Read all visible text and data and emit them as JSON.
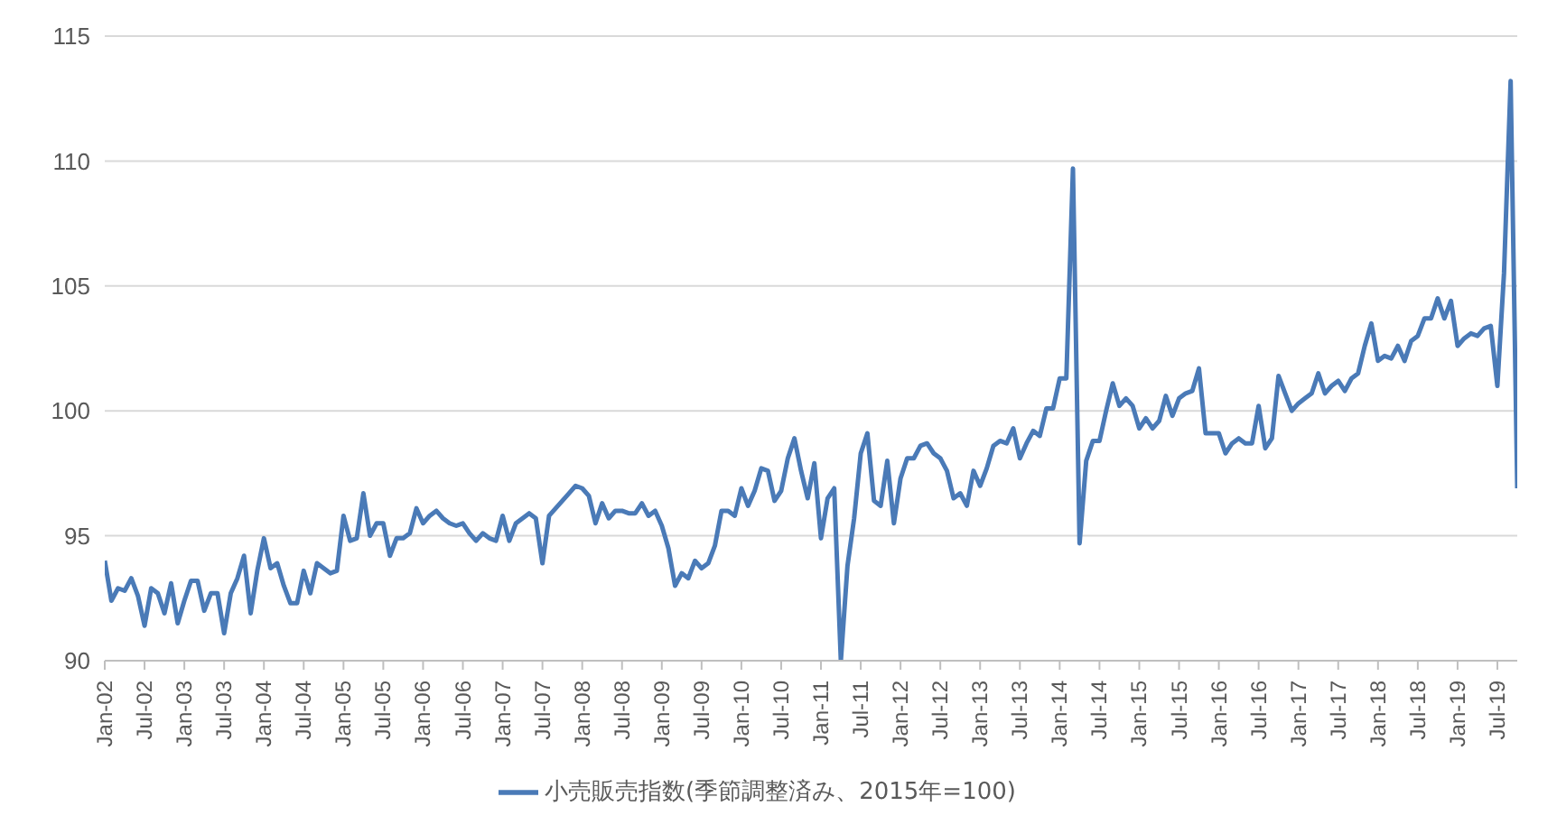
{
  "chart_data": {
    "type": "line",
    "xlim": [
      "2002-01",
      "2019-10"
    ],
    "ylim": [
      90,
      115
    ],
    "yticks": [
      90,
      95,
      100,
      105,
      110,
      115
    ],
    "grid": "y",
    "legend": "bottom",
    "xticks": [
      {
        "value": "2002-01",
        "label": "Jan-02"
      },
      {
        "value": "2002-07",
        "label": "Jul-02"
      },
      {
        "value": "2003-01",
        "label": "Jan-03"
      },
      {
        "value": "2003-07",
        "label": "Jul-03"
      },
      {
        "value": "2004-01",
        "label": "Jan-04"
      },
      {
        "value": "2004-07",
        "label": "Jul-04"
      },
      {
        "value": "2005-01",
        "label": "Jan-05"
      },
      {
        "value": "2005-07",
        "label": "Jul-05"
      },
      {
        "value": "2006-01",
        "label": "Jan-06"
      },
      {
        "value": "2006-07",
        "label": "Jul-06"
      },
      {
        "value": "2007-01",
        "label": "Jan-07"
      },
      {
        "value": "2007-07",
        "label": "Jul-07"
      },
      {
        "value": "2008-01",
        "label": "Jan-08"
      },
      {
        "value": "2008-07",
        "label": "Jul-08"
      },
      {
        "value": "2009-01",
        "label": "Jan-09"
      },
      {
        "value": "2009-07",
        "label": "Jul-09"
      },
      {
        "value": "2010-01",
        "label": "Jan-10"
      },
      {
        "value": "2010-07",
        "label": "Jul-10"
      },
      {
        "value": "2011-01",
        "label": "Jan-11"
      },
      {
        "value": "2011-07",
        "label": "Jul-11"
      },
      {
        "value": "2012-01",
        "label": "Jan-12"
      },
      {
        "value": "2012-07",
        "label": "Jul-12"
      },
      {
        "value": "2013-01",
        "label": "Jan-13"
      },
      {
        "value": "2013-07",
        "label": "Jul-13"
      },
      {
        "value": "2014-01",
        "label": "Jan-14"
      },
      {
        "value": "2014-07",
        "label": "Jul-14"
      },
      {
        "value": "2015-01",
        "label": "Jan-15"
      },
      {
        "value": "2015-07",
        "label": "Jul-15"
      },
      {
        "value": "2016-01",
        "label": "Jan-16"
      },
      {
        "value": "2016-07",
        "label": "Jul-16"
      },
      {
        "value": "2017-01",
        "label": "Jan-17"
      },
      {
        "value": "2017-07",
        "label": "Jul-17"
      },
      {
        "value": "2018-01",
        "label": "Jan-18"
      },
      {
        "value": "2018-07",
        "label": "Jul-18"
      },
      {
        "value": "2019-01",
        "label": "Jan-19"
      },
      {
        "value": "2019-07",
        "label": "Jul-19"
      }
    ],
    "x": [
      "2002-01",
      "2002-02",
      "2002-03",
      "2002-04",
      "2002-05",
      "2002-06",
      "2002-07",
      "2002-08",
      "2002-09",
      "2002-10",
      "2002-11",
      "2002-12",
      "2003-01",
      "2003-02",
      "2003-03",
      "2003-04",
      "2003-05",
      "2003-06",
      "2003-07",
      "2003-08",
      "2003-09",
      "2003-10",
      "2003-11",
      "2003-12",
      "2004-01",
      "2004-02",
      "2004-03",
      "2004-04",
      "2004-05",
      "2004-06",
      "2004-07",
      "2004-08",
      "2004-09",
      "2004-10",
      "2004-11",
      "2004-12",
      "2005-01",
      "2005-02",
      "2005-03",
      "2005-04",
      "2005-05",
      "2005-06",
      "2005-07",
      "2005-08",
      "2005-09",
      "2005-10",
      "2005-11",
      "2005-12",
      "2006-01",
      "2006-02",
      "2006-03",
      "2006-04",
      "2006-05",
      "2006-06",
      "2006-07",
      "2006-08",
      "2006-09",
      "2006-10",
      "2006-11",
      "2006-12",
      "2007-01",
      "2007-02",
      "2007-03",
      "2007-04",
      "2007-05",
      "2007-06",
      "2007-07",
      "2007-08",
      "2007-09",
      "2007-10",
      "2007-11",
      "2007-12",
      "2008-01",
      "2008-02",
      "2008-03",
      "2008-04",
      "2008-05",
      "2008-06",
      "2008-07",
      "2008-08",
      "2008-09",
      "2008-10",
      "2008-11",
      "2008-12",
      "2009-01",
      "2009-02",
      "2009-03",
      "2009-04",
      "2009-05",
      "2009-06",
      "2009-07",
      "2009-08",
      "2009-09",
      "2009-10",
      "2009-11",
      "2009-12",
      "2010-01",
      "2010-02",
      "2010-03",
      "2010-04",
      "2010-05",
      "2010-06",
      "2010-07",
      "2010-08",
      "2010-09",
      "2010-10",
      "2010-11",
      "2010-12",
      "2011-01",
      "2011-02",
      "2011-03",
      "2011-04",
      "2011-05",
      "2011-06",
      "2011-07",
      "2011-08",
      "2011-09",
      "2011-10",
      "2011-11",
      "2011-12",
      "2012-01",
      "2012-02",
      "2012-03",
      "2012-04",
      "2012-05",
      "2012-06",
      "2012-07",
      "2012-08",
      "2012-09",
      "2012-10",
      "2012-11",
      "2012-12",
      "2013-01",
      "2013-02",
      "2013-03",
      "2013-04",
      "2013-05",
      "2013-06",
      "2013-07",
      "2013-08",
      "2013-09",
      "2013-10",
      "2013-11",
      "2013-12",
      "2014-01",
      "2014-02",
      "2014-03",
      "2014-04",
      "2014-05",
      "2014-06",
      "2014-07",
      "2014-08",
      "2014-09",
      "2014-10",
      "2014-11",
      "2014-12",
      "2015-01",
      "2015-02",
      "2015-03",
      "2015-04",
      "2015-05",
      "2015-06",
      "2015-07",
      "2015-08",
      "2015-09",
      "2015-10",
      "2015-11",
      "2015-12",
      "2016-01",
      "2016-02",
      "2016-03",
      "2016-04",
      "2016-05",
      "2016-06",
      "2016-07",
      "2016-08",
      "2016-09",
      "2016-10",
      "2016-11",
      "2016-12",
      "2017-01",
      "2017-02",
      "2017-03",
      "2017-04",
      "2017-05",
      "2017-06",
      "2017-07",
      "2017-08",
      "2017-09",
      "2017-10",
      "2017-11",
      "2017-12",
      "2018-01",
      "2018-02",
      "2018-03",
      "2018-04",
      "2018-05",
      "2018-06",
      "2018-07",
      "2018-08",
      "2018-09",
      "2018-10",
      "2018-11",
      "2018-12",
      "2019-01",
      "2019-02",
      "2019-03",
      "2019-04",
      "2019-05",
      "2019-06",
      "2019-07",
      "2019-08",
      "2019-09",
      "2019-10"
    ],
    "series": [
      {
        "name": "小売販売指数(季節調整済み、2015年=100)",
        "color": "#4a7ab7",
        "values": [
          94.0,
          92.4,
          92.9,
          92.8,
          93.3,
          92.6,
          91.4,
          92.9,
          92.7,
          91.9,
          93.1,
          91.5,
          92.4,
          93.2,
          93.2,
          92.0,
          92.7,
          92.7,
          91.1,
          92.7,
          93.3,
          94.2,
          91.9,
          93.6,
          94.9,
          93.7,
          93.9,
          93.0,
          92.3,
          92.3,
          93.6,
          92.7,
          93.9,
          93.7,
          93.5,
          93.6,
          95.8,
          94.8,
          94.9,
          96.7,
          95.0,
          95.5,
          95.5,
          94.2,
          94.9,
          94.9,
          95.1,
          96.1,
          95.5,
          95.8,
          96.0,
          95.7,
          95.5,
          95.4,
          95.5,
          95.1,
          94.8,
          95.1,
          94.9,
          94.8,
          95.8,
          94.8,
          95.5,
          95.7,
          95.9,
          95.7,
          93.9,
          95.8,
          96.1,
          96.4,
          96.7,
          97.0,
          96.9,
          96.6,
          95.5,
          96.3,
          95.7,
          96.0,
          96.0,
          95.9,
          95.9,
          96.3,
          95.8,
          96.0,
          95.4,
          94.5,
          93.0,
          93.5,
          93.3,
          94.0,
          93.7,
          93.9,
          94.6,
          96.0,
          96.0,
          95.8,
          96.9,
          96.2,
          96.8,
          97.7,
          97.6,
          96.4,
          96.8,
          98.1,
          98.9,
          97.6,
          96.5,
          97.9,
          94.9,
          96.5,
          96.9,
          90.0,
          93.8,
          95.7,
          98.3,
          99.1,
          96.4,
          96.2,
          98.0,
          95.5,
          97.3,
          98.1,
          98.1,
          98.6,
          98.7,
          98.3,
          98.1,
          97.6,
          96.5,
          96.7,
          96.2,
          97.6,
          97.0,
          97.7,
          98.6,
          98.8,
          98.7,
          99.3,
          98.1,
          98.7,
          99.2,
          99.0,
          100.1,
          100.1,
          101.3,
          101.3,
          109.7,
          94.7,
          98.0,
          98.8,
          98.8,
          100.0,
          101.1,
          100.2,
          100.5,
          100.2,
          99.3,
          99.7,
          99.3,
          99.6,
          100.6,
          99.8,
          100.5,
          100.7,
          100.8,
          101.7,
          99.1,
          99.1,
          99.1,
          98.3,
          98.7,
          98.9,
          98.7,
          98.7,
          100.2,
          98.5,
          98.9,
          101.4,
          100.7,
          100.0,
          100.3,
          100.5,
          100.7,
          101.5,
          100.7,
          101.0,
          101.2,
          100.8,
          101.3,
          101.5,
          102.6,
          103.5,
          102.0,
          102.2,
          102.1,
          102.6,
          102.0,
          102.8,
          103.0,
          103.7,
          103.7,
          104.5,
          103.7,
          104.4,
          102.6,
          102.9,
          103.1,
          103.0,
          103.3,
          103.4,
          101.0,
          105.5,
          113.2,
          96.9
        ]
      }
    ]
  }
}
